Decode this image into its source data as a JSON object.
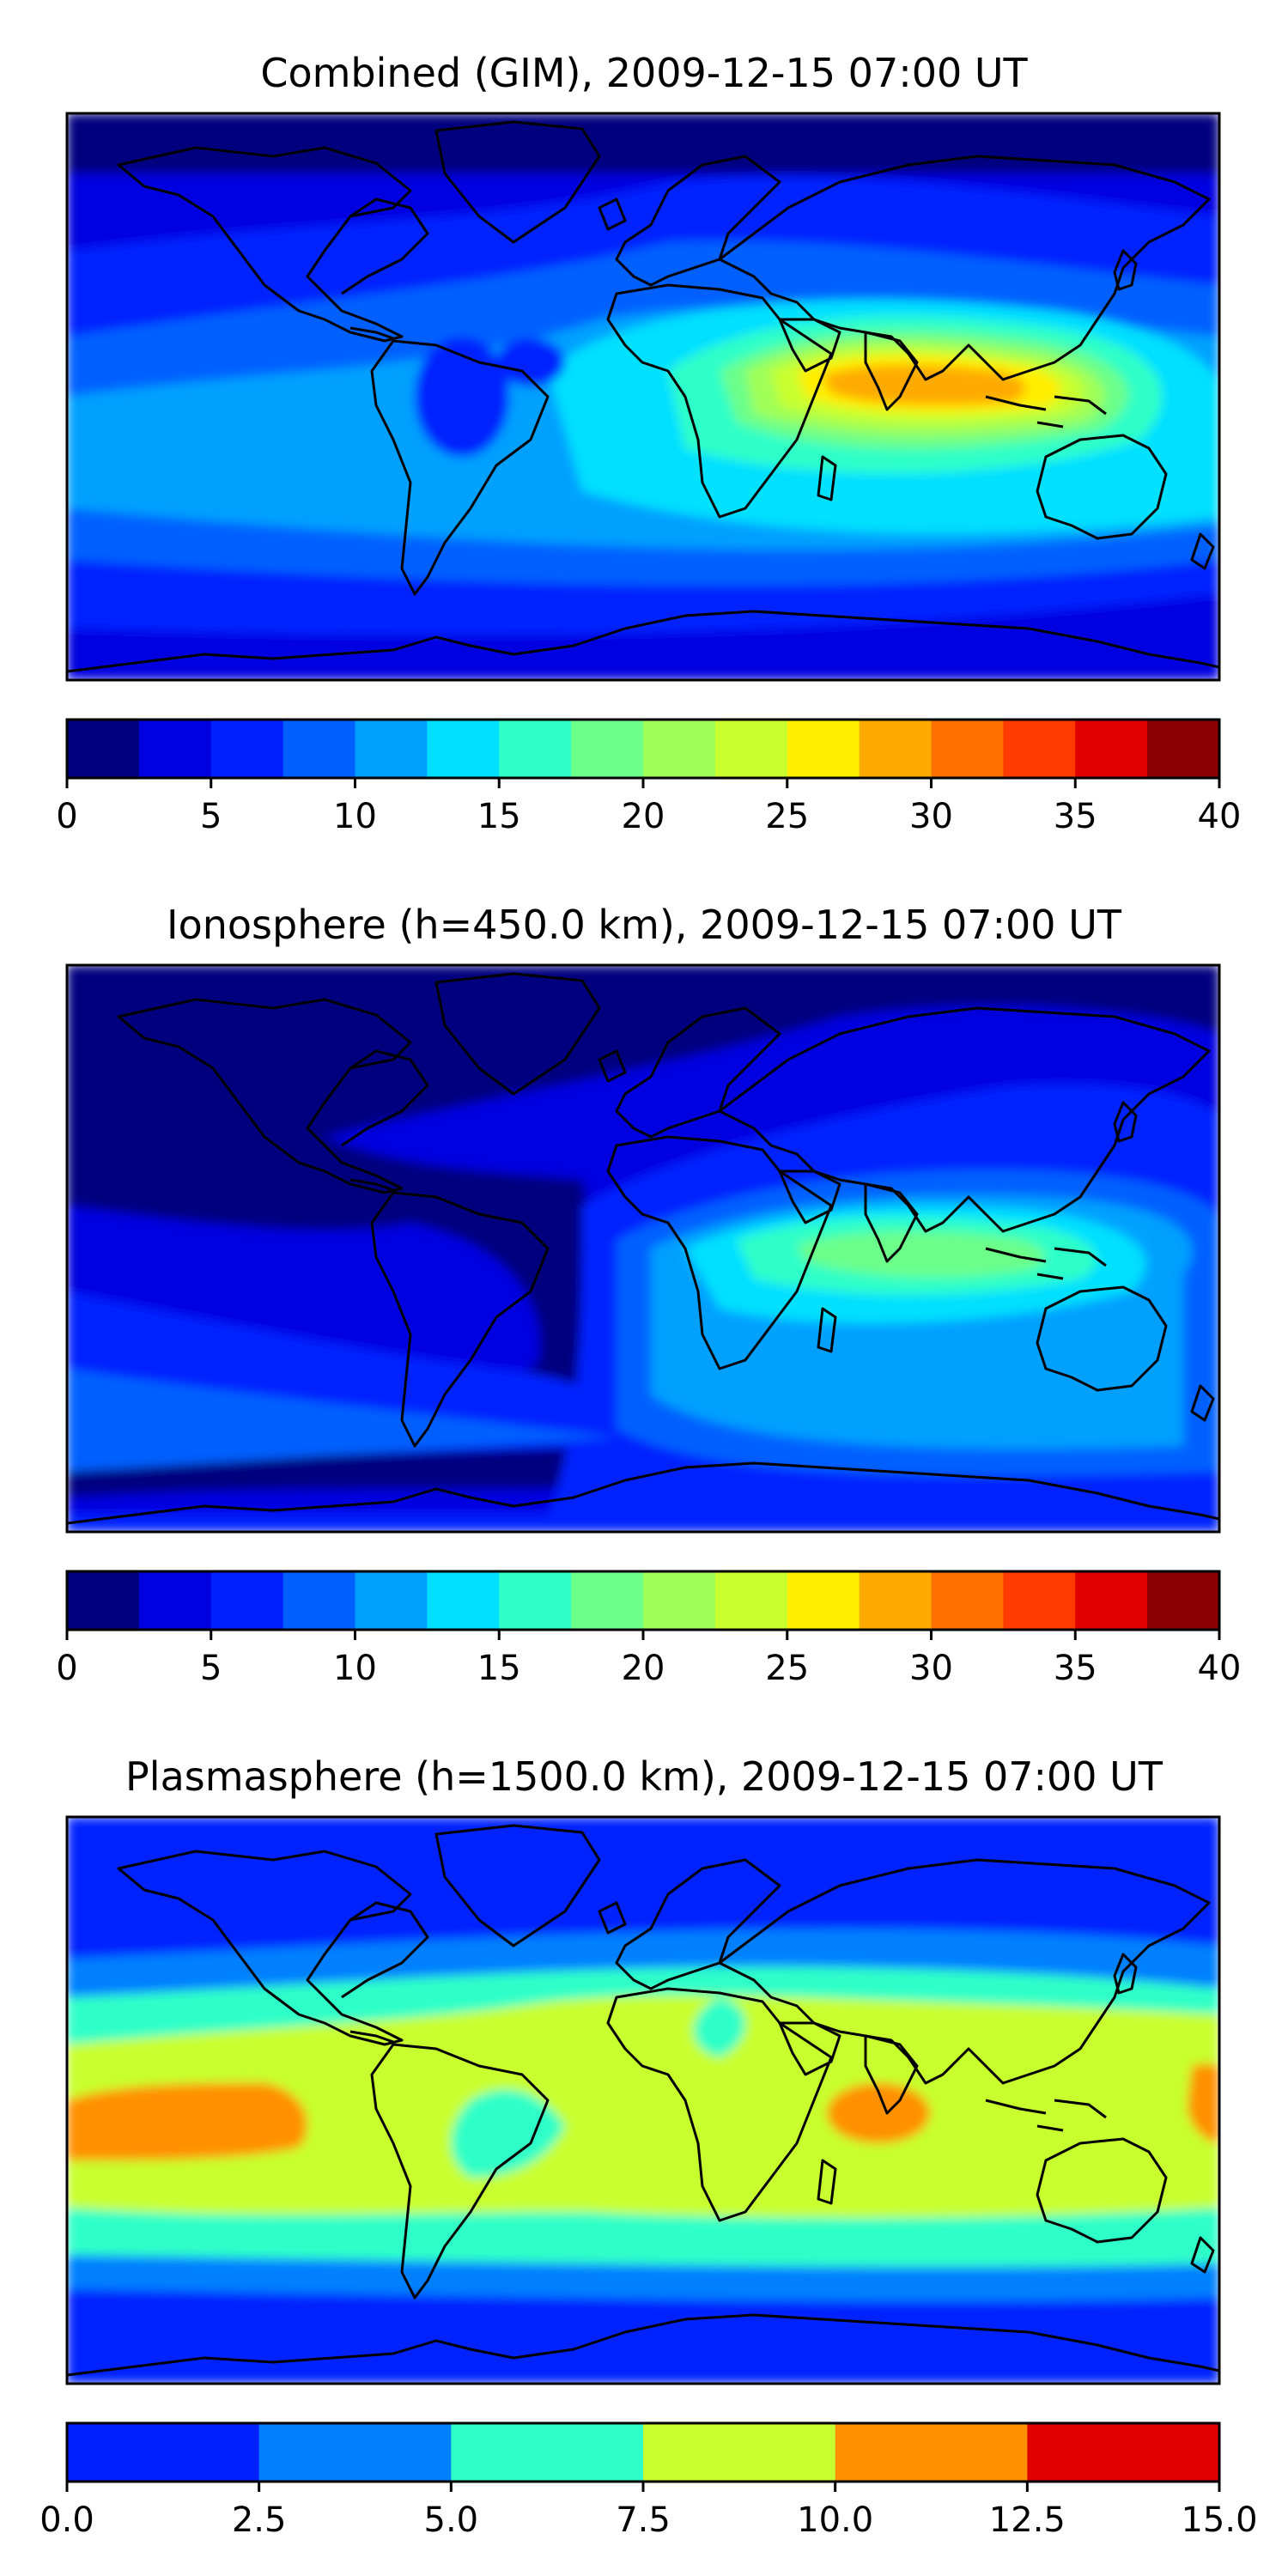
{
  "panels": [
    {
      "title": "Combined (GIM), 2009-12-15 07:00 UT",
      "colorbar": {
        "levels": [
          0,
          2.5,
          5,
          7.5,
          10,
          12.5,
          15,
          17.5,
          20,
          22.5,
          25,
          27.5,
          30,
          32.5,
          35,
          37.5,
          40
        ],
        "colors": [
          "#00007f",
          "#0000e0",
          "#0020ff",
          "#0060ff",
          "#00a0ff",
          "#00e0ff",
          "#2effc8",
          "#6cff8a",
          "#a0ff56",
          "#c8ff2e",
          "#ffee00",
          "#ffaa00",
          "#ff7000",
          "#ff3a00",
          "#e00000",
          "#8b0000"
        ],
        "tick_labels": [
          "0",
          "5",
          "10",
          "15",
          "20",
          "25",
          "30",
          "35",
          "40"
        ],
        "tick_values": [
          0,
          5,
          10,
          15,
          20,
          25,
          30,
          35,
          40
        ]
      }
    },
    {
      "title": "Ionosphere  (h=450.0 km), 2009-12-15 07:00 UT",
      "colorbar": {
        "levels": [
          0,
          2.5,
          5,
          7.5,
          10,
          12.5,
          15,
          17.5,
          20,
          22.5,
          25,
          27.5,
          30,
          32.5,
          35,
          37.5,
          40
        ],
        "colors": [
          "#00007f",
          "#0000e0",
          "#0020ff",
          "#0060ff",
          "#00a0ff",
          "#00e0ff",
          "#2effc8",
          "#6cff8a",
          "#a0ff56",
          "#c8ff2e",
          "#ffee00",
          "#ffaa00",
          "#ff7000",
          "#ff3a00",
          "#e00000",
          "#8b0000"
        ],
        "tick_labels": [
          "0",
          "5",
          "10",
          "15",
          "20",
          "25",
          "30",
          "35",
          "40"
        ],
        "tick_values": [
          0,
          5,
          10,
          15,
          20,
          25,
          30,
          35,
          40
        ]
      }
    },
    {
      "title": "Plasmasphere (h=1500.0 km), 2009-12-15 07:00 UT",
      "colorbar": {
        "levels": [
          0,
          2.5,
          5,
          7.5,
          10,
          12.5,
          15
        ],
        "colors": [
          "#0020ff",
          "#0080ff",
          "#2effc8",
          "#c8ff2e",
          "#ff9000",
          "#e00000"
        ],
        "tick_labels": [
          "0.0",
          "2.5",
          "5.0",
          "7.5",
          "10.0",
          "12.5",
          "15.0"
        ],
        "tick_values": [
          0,
          2.5,
          5,
          7.5,
          10,
          12.5,
          15
        ]
      }
    }
  ]
}
